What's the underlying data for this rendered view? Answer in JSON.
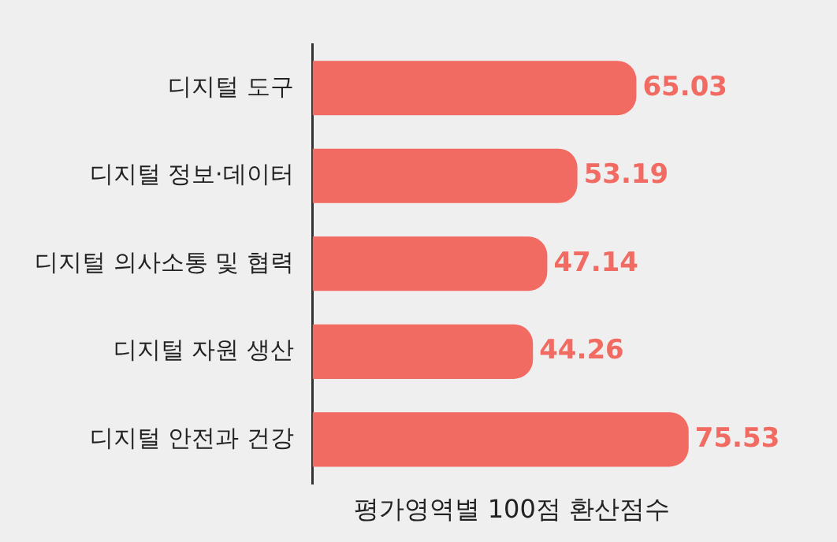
{
  "chart_data": {
    "type": "bar",
    "orientation": "horizontal",
    "xlabel": "평가영역별 100점 환산점수",
    "categories": [
      "디지털 도구",
      "디지털 정보·데이터",
      "디지털 의사소통 및 협력",
      "디지털 자원 생산",
      "디지털 안전과 건강"
    ],
    "series": [
      {
        "color": "#f26b62",
        "values": [
          65.03,
          53.19,
          47.14,
          44.26,
          75.53
        ]
      }
    ],
    "data_labels": true,
    "grid": false,
    "legend": false,
    "tick_labels": "y"
  }
}
